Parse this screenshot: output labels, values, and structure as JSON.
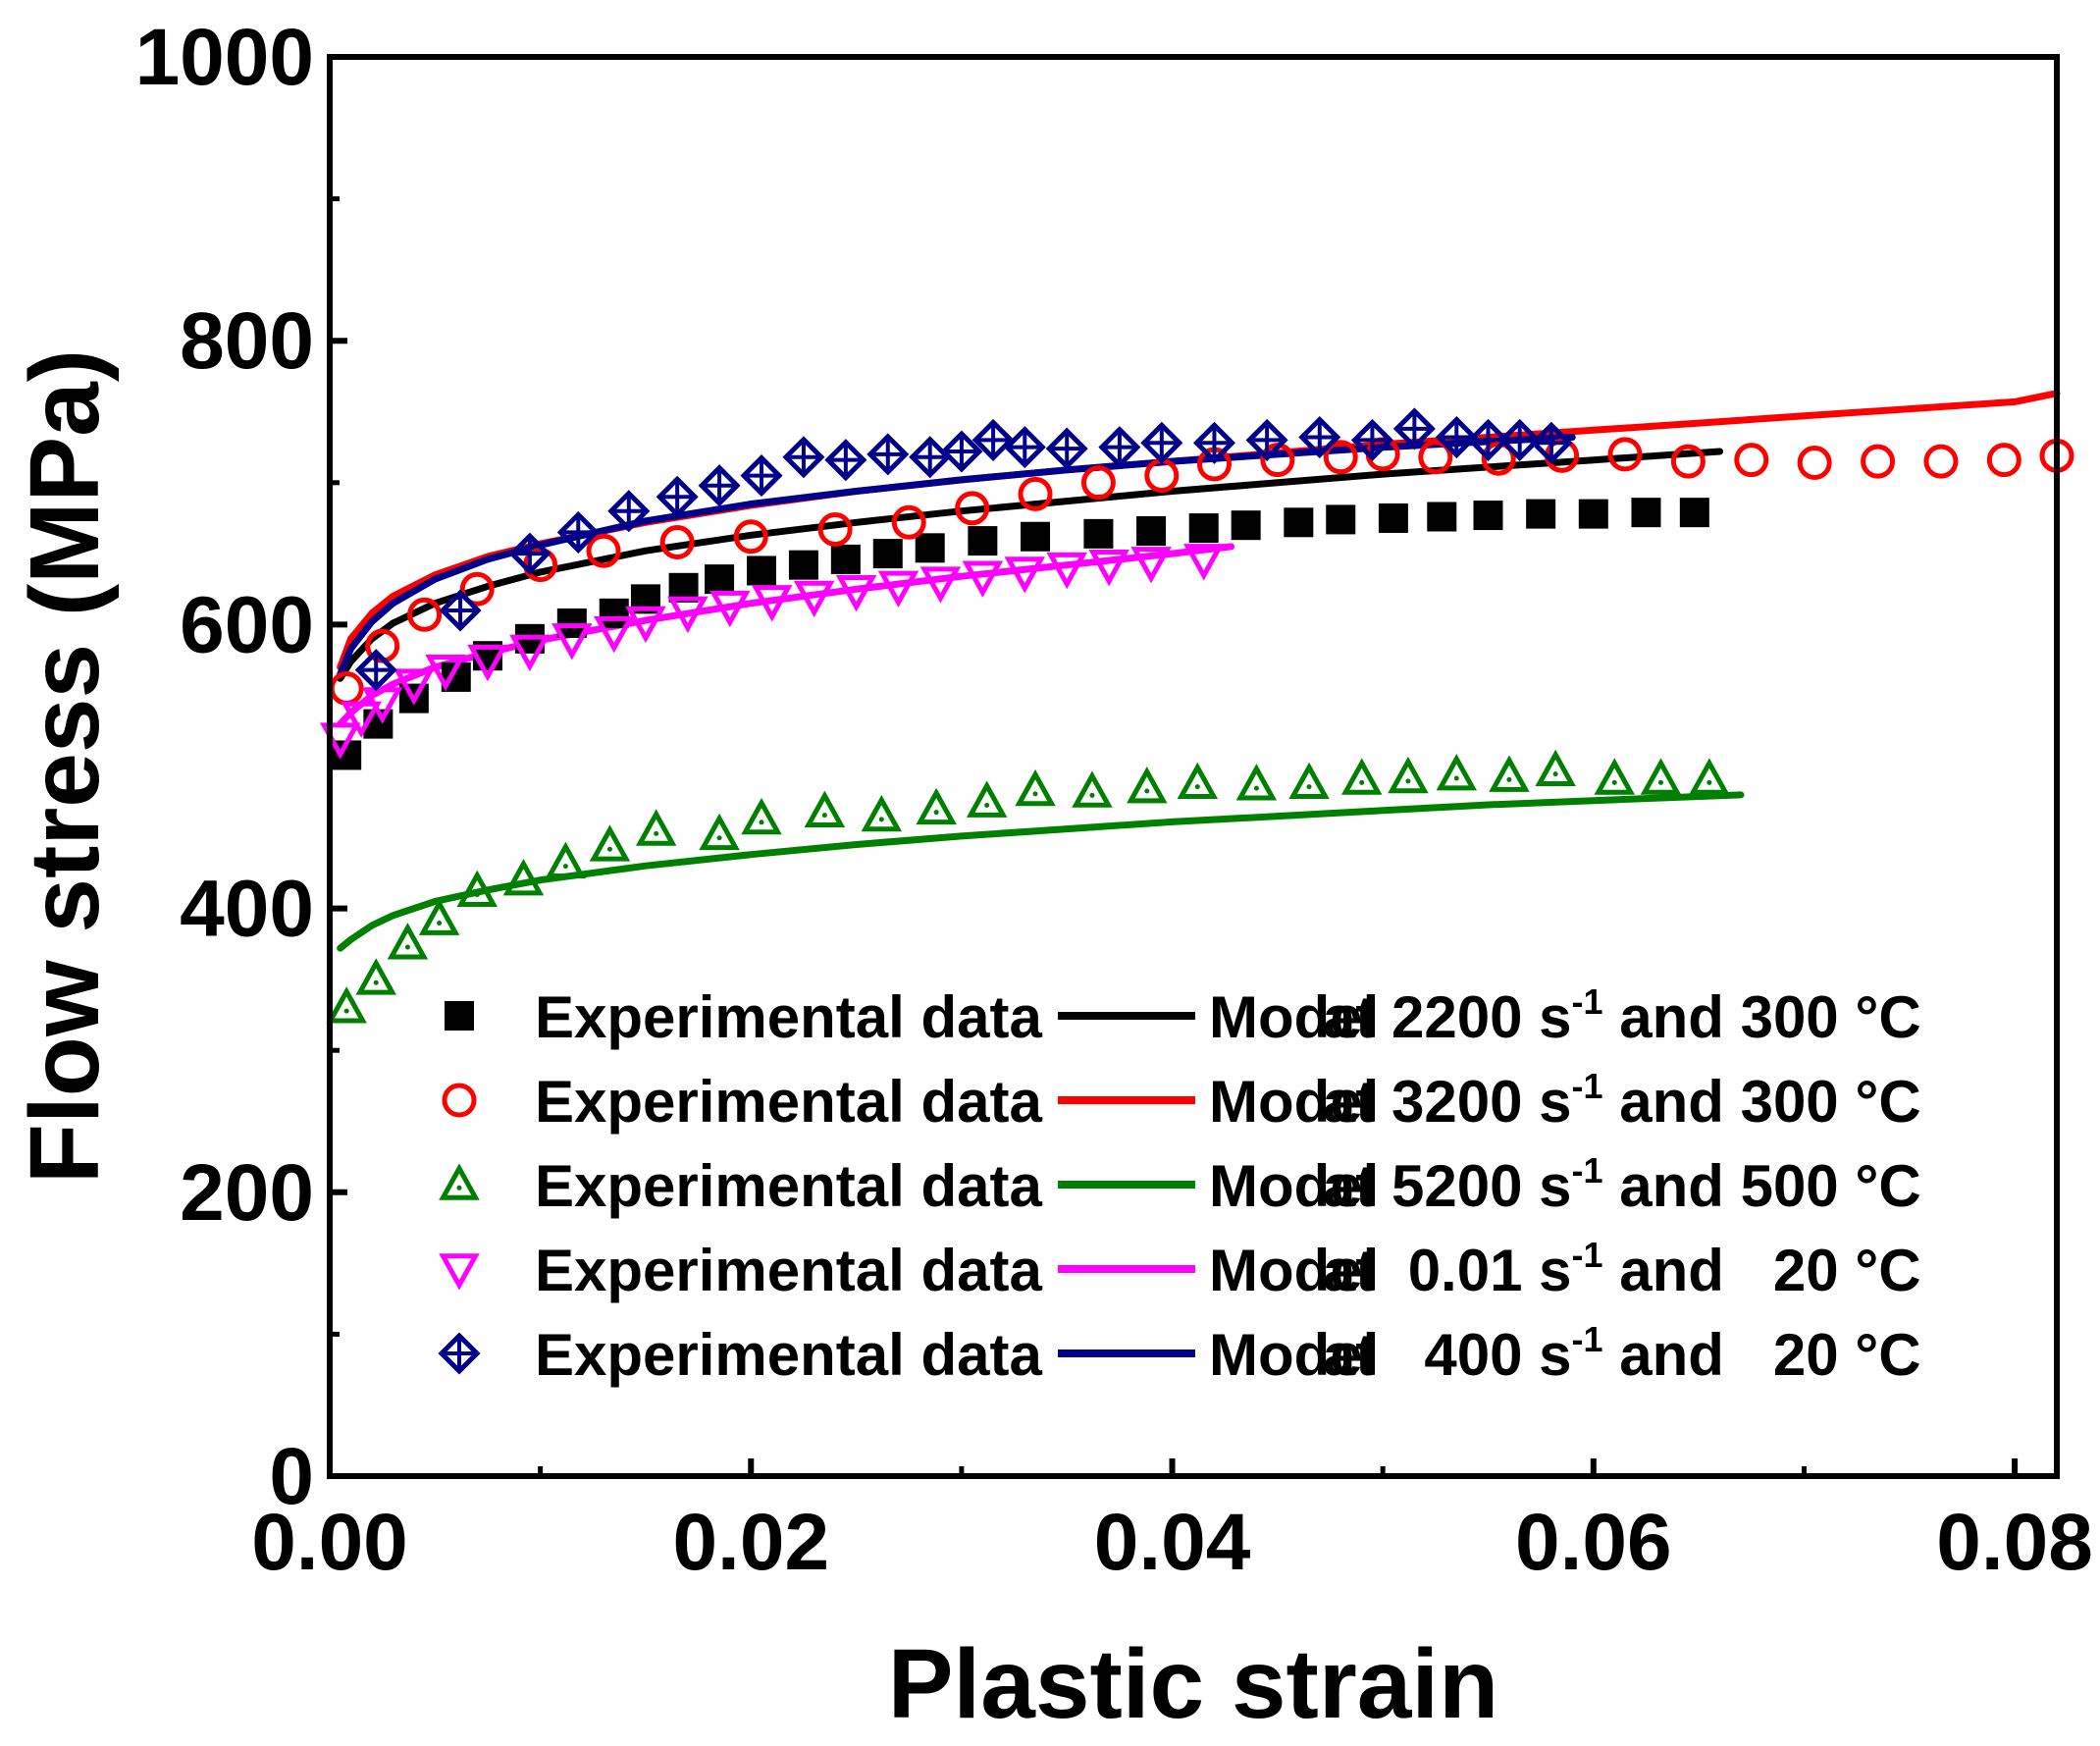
{
  "chart_data": {
    "type": "line",
    "title": "",
    "xlabel": "Plastic strain",
    "ylabel": "Flow stress (MPa)",
    "xlim": [
      0,
      0.082
    ],
    "ylim": [
      0,
      1000
    ],
    "xticks": [
      0.0,
      0.02,
      0.04,
      0.06,
      0.08
    ],
    "xtick_labels": [
      "0.00",
      "0.02",
      "0.04",
      "0.06",
      "0.08"
    ],
    "yticks": [
      0,
      200,
      400,
      600,
      800,
      1000
    ],
    "ytick_labels": [
      "0",
      "200",
      "400",
      "600",
      "800",
      "1000"
    ],
    "grid": false,
    "legend_position": "bottom-right",
    "legend_entries": [
      {
        "marker_label": "Experimental data",
        "model_label": "Model",
        "rate_text": "at 2200 s",
        "sup": "-1",
        "temp_text": " and 300 °C"
      },
      {
        "marker_label": "Experimental data",
        "model_label": "Model",
        "rate_text": "at 3200 s",
        "sup": "-1",
        "temp_text": " and 300 °C"
      },
      {
        "marker_label": "Experimental data",
        "model_label": "Model",
        "rate_text": "at 5200 s",
        "sup": "-1",
        "temp_text": " and 500 °C"
      },
      {
        "marker_label": "Experimental data",
        "model_label": "Model",
        "rate_text": "at  0.01 s",
        "sup": "-1",
        "temp_text": " and   20 °C"
      },
      {
        "marker_label": "Experimental data",
        "model_label": "Model",
        "rate_text": "at   400 s",
        "sup": "-1",
        "temp_text": " and   20 °C"
      }
    ],
    "series": [
      {
        "name": "2200 s-1 and 300 C",
        "color": "#000000",
        "marker": "filled-square",
        "experimental": {
          "x": [
            0.0008,
            0.0023,
            0.004,
            0.006,
            0.0075,
            0.0095,
            0.0115,
            0.0135,
            0.015,
            0.0168,
            0.0185,
            0.0205,
            0.0225,
            0.0245,
            0.0265,
            0.0285,
            0.031,
            0.0335,
            0.0365,
            0.039,
            0.0415,
            0.0435,
            0.046,
            0.048,
            0.0505,
            0.0528,
            0.055,
            0.0575,
            0.06,
            0.0625,
            0.0648
          ],
          "y": [
            508,
            530,
            548,
            563,
            578,
            590,
            601,
            608,
            618,
            626,
            632,
            638,
            642,
            646,
            650,
            654,
            659,
            662,
            664,
            666,
            668,
            670,
            672,
            674,
            675,
            676,
            677,
            678,
            678,
            679,
            679
          ]
        },
        "model": {
          "x": [
            0.0005,
            0.001,
            0.002,
            0.003,
            0.005,
            0.0075,
            0.01,
            0.015,
            0.02,
            0.025,
            0.03,
            0.035,
            0.04,
            0.045,
            0.05,
            0.055,
            0.06,
            0.066
          ],
          "y": [
            562,
            574,
            590,
            601,
            615,
            627,
            637,
            652,
            663,
            672,
            680,
            687,
            694,
            700,
            706,
            711,
            716,
            722
          ]
        }
      },
      {
        "name": "3200 s-1 and 300 C",
        "color": "#ff0000",
        "marker": "open-circle",
        "experimental": {
          "x": [
            0.0008,
            0.0025,
            0.0045,
            0.007,
            0.01,
            0.013,
            0.0165,
            0.02,
            0.024,
            0.0275,
            0.0305,
            0.0335,
            0.0365,
            0.0395,
            0.042,
            0.045,
            0.048,
            0.05,
            0.0525,
            0.0555,
            0.0585,
            0.0615,
            0.0645,
            0.0675,
            0.0705,
            0.0735,
            0.0765,
            0.0795,
            0.082
          ],
          "y": [
            555,
            585,
            607,
            625,
            642,
            652,
            658,
            662,
            667,
            672,
            682,
            692,
            700,
            705,
            713,
            716,
            718,
            720,
            718,
            717,
            719,
            720,
            715,
            716,
            714,
            715,
            715,
            716,
            719
          ]
        },
        "model": {
          "x": [
            0.0005,
            0.001,
            0.002,
            0.003,
            0.005,
            0.0075,
            0.01,
            0.015,
            0.02,
            0.025,
            0.03,
            0.035,
            0.04,
            0.045,
            0.05,
            0.055,
            0.06,
            0.065,
            0.07,
            0.075,
            0.08,
            0.082
          ],
          "y": [
            570,
            590,
            608,
            620,
            635,
            648,
            657,
            672,
            684,
            694,
            702,
            709,
            715,
            721,
            727,
            732,
            737,
            742,
            747,
            752,
            757,
            763
          ]
        }
      },
      {
        "name": "5200 s-1 and 500 C",
        "color": "#008000",
        "marker": "open-triangle-up",
        "experimental": {
          "x": [
            0.0008,
            0.0022,
            0.0037,
            0.0052,
            0.007,
            0.0092,
            0.0112,
            0.0133,
            0.0155,
            0.0185,
            0.0205,
            0.0235,
            0.0262,
            0.0288,
            0.0312,
            0.0335,
            0.0362,
            0.0388,
            0.0412,
            0.044,
            0.0465,
            0.049,
            0.0512,
            0.0535,
            0.056,
            0.0582,
            0.061,
            0.0632,
            0.0655
          ],
          "y": [
            330,
            350,
            375,
            392,
            412,
            420,
            432,
            444,
            455,
            452,
            463,
            468,
            465,
            470,
            475,
            483,
            482,
            485,
            488,
            487,
            488,
            491,
            492,
            494,
            493,
            497,
            491,
            491,
            491
          ]
        },
        "model": {
          "x": [
            0.0005,
            0.001,
            0.002,
            0.003,
            0.005,
            0.0075,
            0.01,
            0.015,
            0.02,
            0.025,
            0.03,
            0.035,
            0.04,
            0.045,
            0.05,
            0.055,
            0.06,
            0.067
          ],
          "y": [
            372,
            378,
            388,
            395,
            405,
            413,
            420,
            430,
            438,
            445,
            451,
            456,
            461,
            465,
            469,
            473,
            476,
            480
          ]
        }
      },
      {
        "name": "0.01 s-1 and 20 C",
        "color": "#ff00ff",
        "marker": "open-triangle-down",
        "experimental": {
          "x": [
            0.0005,
            0.0015,
            0.0025,
            0.004,
            0.0055,
            0.0075,
            0.0095,
            0.0115,
            0.0135,
            0.015,
            0.017,
            0.019,
            0.021,
            0.023,
            0.025,
            0.027,
            0.029,
            0.031,
            0.033,
            0.035,
            0.037,
            0.039,
            0.0415
          ],
          "y": [
            520,
            535,
            545,
            558,
            568,
            575,
            582,
            590,
            595,
            602,
            609,
            613,
            617,
            620,
            624,
            627,
            630,
            634,
            637,
            640,
            642,
            644,
            646
          ]
        },
        "model": {
          "x": [
            0.0005,
            0.001,
            0.002,
            0.003,
            0.005,
            0.0075,
            0.01,
            0.015,
            0.02,
            0.025,
            0.03,
            0.035,
            0.04,
            0.0428
          ],
          "y": [
            530,
            538,
            550,
            558,
            570,
            580,
            589,
            603,
            615,
            625,
            634,
            642,
            650,
            655
          ]
        }
      },
      {
        "name": "400 s-1 and 20 C",
        "color": "#00008b",
        "marker": "open-diamond-cross",
        "experimental": {
          "x": [
            0.0022,
            0.0062,
            0.0095,
            0.0118,
            0.0142,
            0.0165,
            0.0185,
            0.0205,
            0.0225,
            0.0245,
            0.0265,
            0.0285,
            0.03,
            0.0315,
            0.033,
            0.035,
            0.0375,
            0.0395,
            0.042,
            0.0445,
            0.047,
            0.0495,
            0.0515,
            0.0535,
            0.055,
            0.0565,
            0.058
          ],
          "y": [
            568,
            610,
            650,
            665,
            680,
            690,
            698,
            705,
            718,
            716,
            720,
            718,
            722,
            730,
            725,
            724,
            725,
            728,
            728,
            730,
            732,
            730,
            738,
            732,
            730,
            730,
            728
          ]
        },
        "model": {
          "x": [
            0.0005,
            0.001,
            0.002,
            0.003,
            0.005,
            0.0075,
            0.01,
            0.015,
            0.02,
            0.025,
            0.03,
            0.035,
            0.04,
            0.045,
            0.05,
            0.055,
            0.059
          ],
          "y": [
            565,
            583,
            602,
            615,
            632,
            646,
            656,
            673,
            685,
            694,
            702,
            709,
            715,
            720,
            725,
            729,
            732
          ]
        }
      }
    ]
  }
}
